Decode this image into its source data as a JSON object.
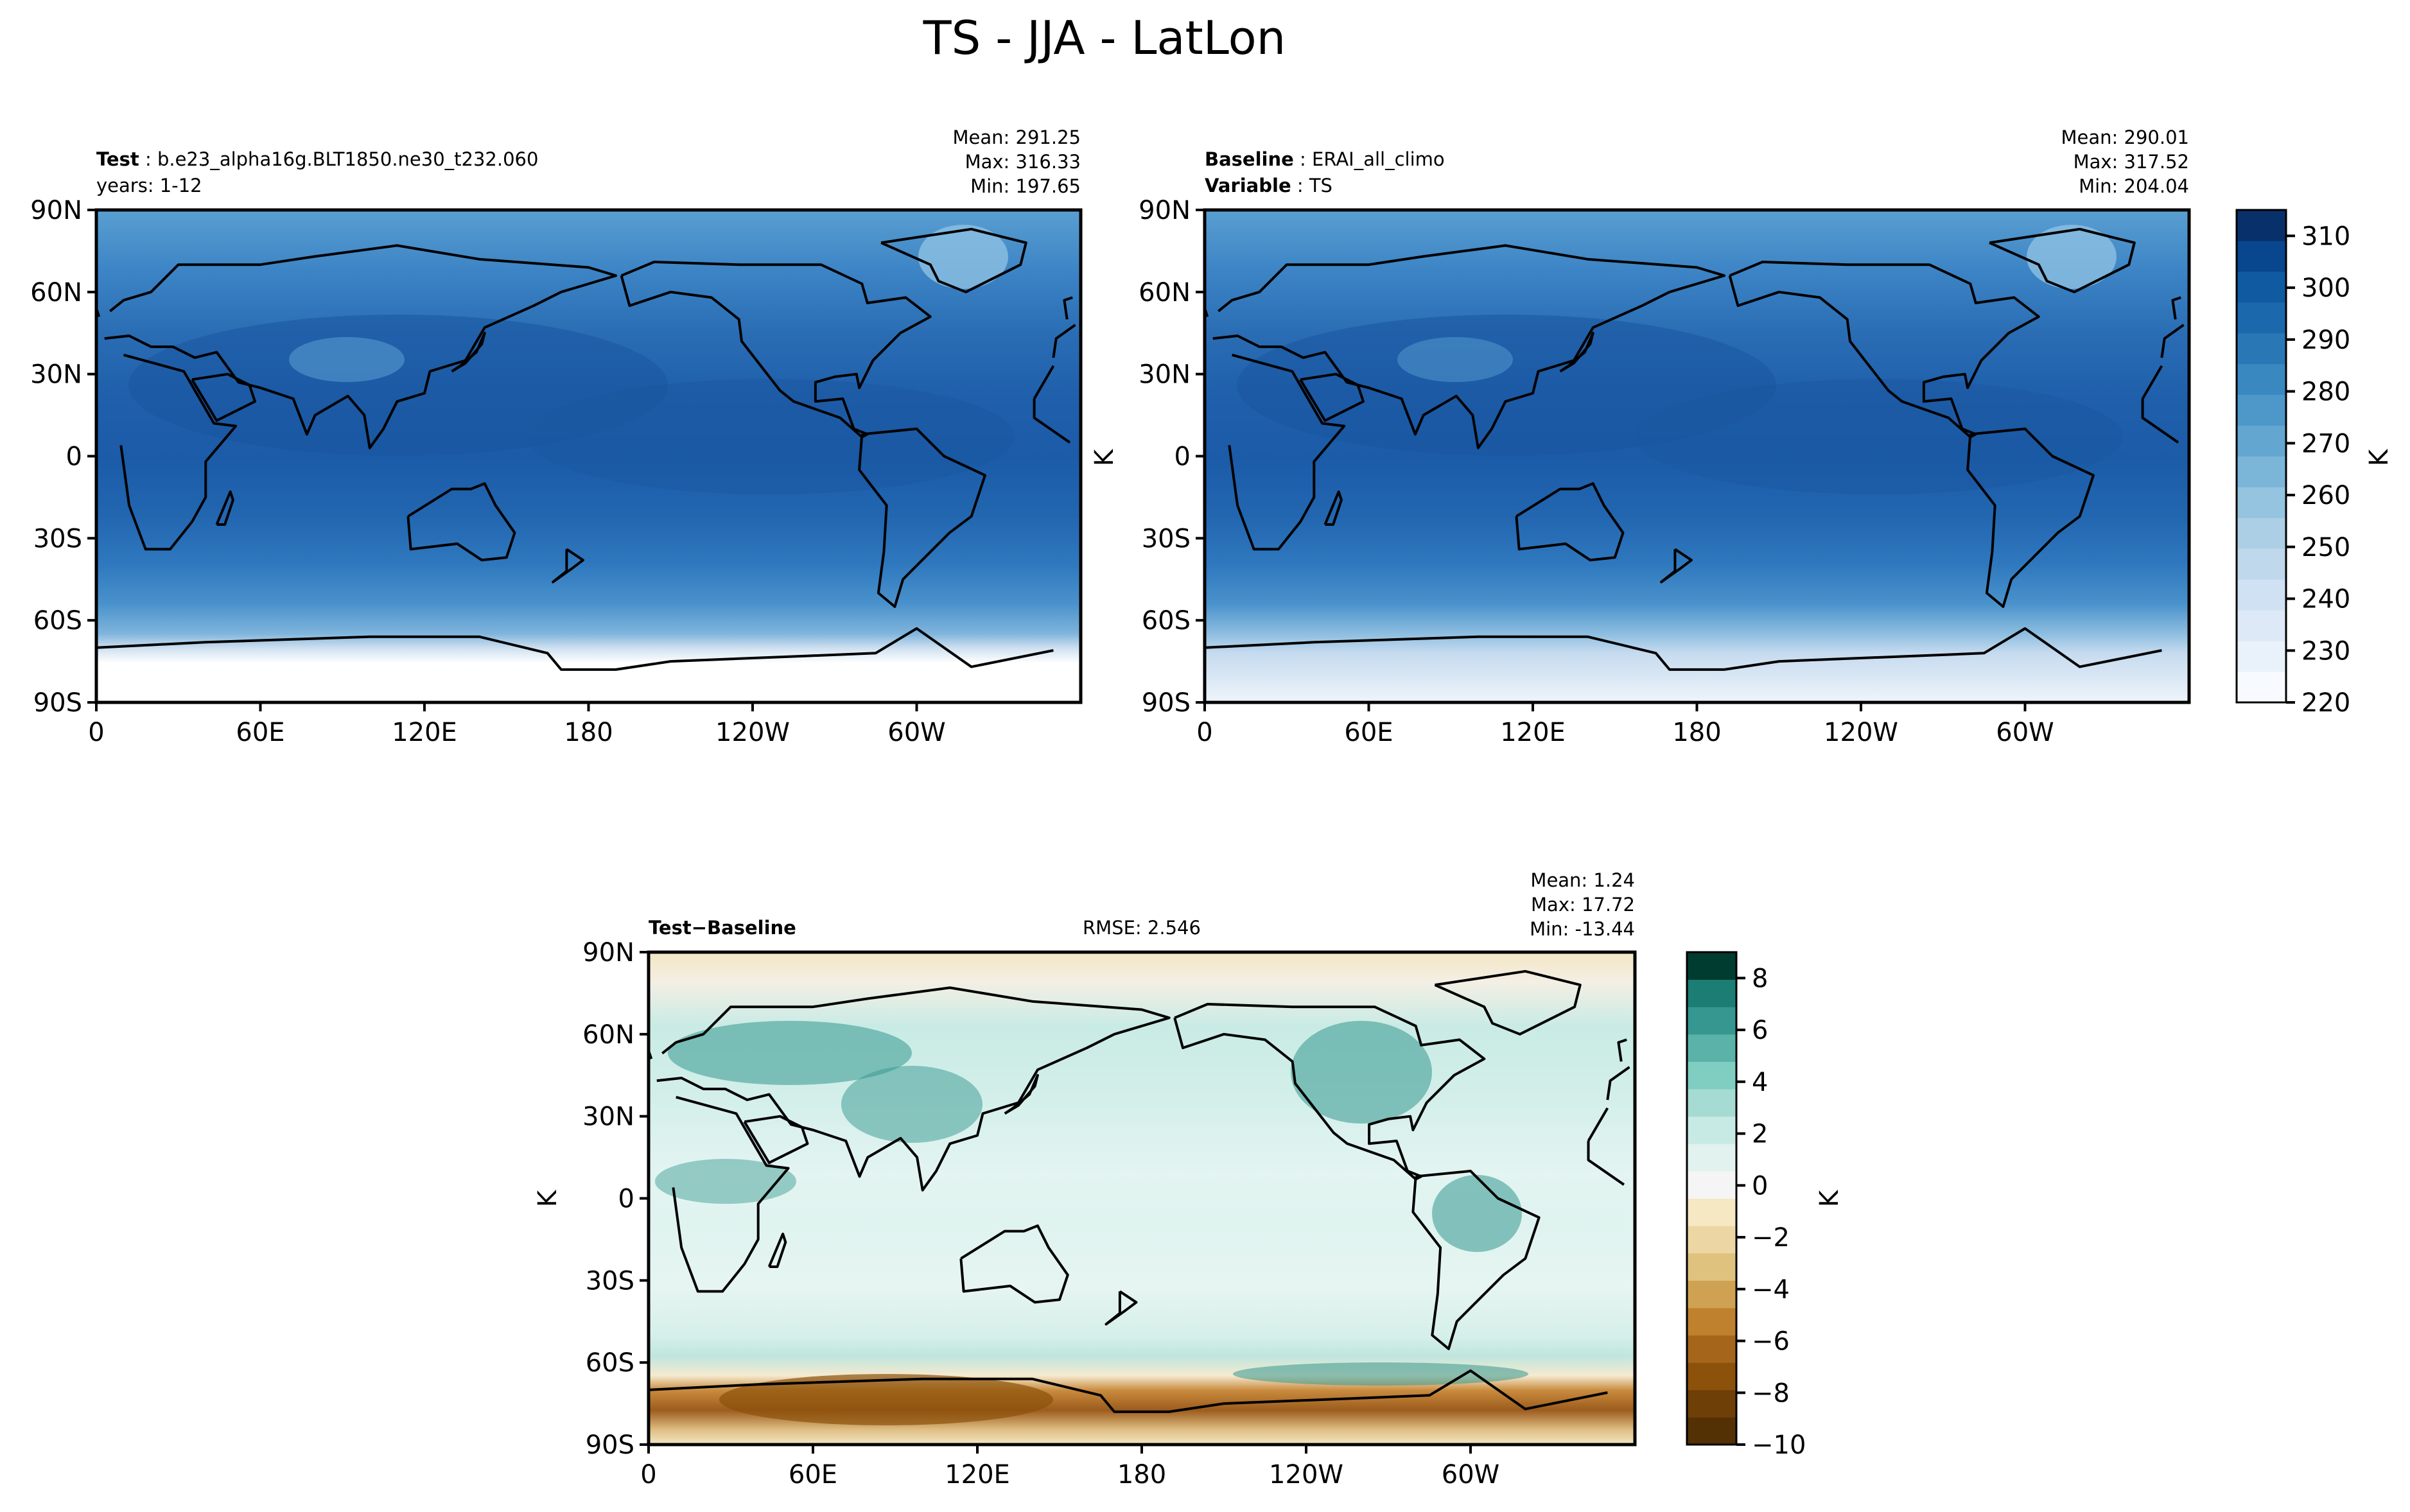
{
  "figure": {
    "title": "TS - JJA - LatLon"
  },
  "chart_data": [
    {
      "type": "heatmap",
      "panel": "test",
      "label_key": "Test",
      "label_value": "b.e23_alpha16g.BLT1850.ne30_t232.060",
      "line2": "years: 1-12",
      "stats": [
        "Mean: 291.25",
        "Max: 316.33",
        "Min: 197.65"
      ],
      "xticks": [
        "0",
        "60E",
        "120E",
        "180",
        "120W",
        "60W"
      ],
      "yticks": [
        "90N",
        "60N",
        "30N",
        "0",
        "30S",
        "60S",
        "90S"
      ],
      "xlim": [
        0,
        360
      ],
      "ylim": [
        -90,
        90
      ],
      "field": {
        "lat": [
          -90,
          -75,
          -60,
          -45,
          -30,
          -15,
          0,
          15,
          30,
          45,
          60,
          75,
          90
        ],
        "zonal_mean_K": [
          222,
          236,
          268,
          280,
          288,
          295,
          299,
          299,
          296,
          287,
          278,
          268,
          260
        ]
      }
    },
    {
      "type": "heatmap",
      "panel": "baseline",
      "label_key": "Baseline",
      "label_value": "ERAI_all_climo",
      "label_key2": "Variable",
      "label_value2": "TS",
      "stats": [
        "Mean: 290.01",
        "Max: 317.52",
        "Min: 204.04"
      ],
      "ylabel": "K",
      "xticks": [
        "0",
        "60E",
        "120E",
        "180",
        "120W",
        "60W"
      ],
      "yticks": [
        "90N",
        "60N",
        "30N",
        "0",
        "30S",
        "60S",
        "90S"
      ],
      "xlim": [
        0,
        360
      ],
      "ylim": [
        -90,
        90
      ],
      "colorbar": {
        "label": "K",
        "ticks": [
          220,
          230,
          240,
          250,
          260,
          270,
          280,
          290,
          300,
          310
        ],
        "range": [
          220,
          315
        ]
      },
      "field": {
        "lat": [
          -90,
          -75,
          -60,
          -45,
          -30,
          -15,
          0,
          15,
          30,
          45,
          60,
          75,
          90
        ],
        "zonal_mean_K": [
          228,
          240,
          269,
          280,
          288,
          295,
          299,
          299,
          296,
          287,
          278,
          268,
          258
        ]
      }
    },
    {
      "type": "heatmap",
      "panel": "diff",
      "label_key": "Test",
      "label_op": "−",
      "label_value": "Baseline",
      "rmse": "RMSE: 2.546",
      "stats": [
        "Mean:  1.24",
        "Max: 17.72",
        "Min: -13.44"
      ],
      "ylabel": "K",
      "xticks": [
        "0",
        "60E",
        "120E",
        "180",
        "120W",
        "60W"
      ],
      "yticks": [
        "90N",
        "60N",
        "30N",
        "0",
        "30S",
        "60S",
        "90S"
      ],
      "xlim": [
        0,
        360
      ],
      "ylim": [
        -90,
        90
      ],
      "colorbar": {
        "label": "K",
        "ticks": [
          "−10",
          "−8",
          "−6",
          "−4",
          "−2",
          "0",
          "2",
          "4",
          "6",
          "8"
        ],
        "range": [
          -10,
          9
        ]
      },
      "field": {
        "lat": [
          -90,
          -80,
          -70,
          -60,
          -45,
          -30,
          -15,
          0,
          15,
          30,
          45,
          60,
          75,
          90
        ],
        "zonal_mean_K": [
          -1,
          -5,
          -6,
          3,
          1,
          0.5,
          0.5,
          1,
          1,
          2,
          3,
          2,
          0,
          -1
        ]
      }
    }
  ]
}
